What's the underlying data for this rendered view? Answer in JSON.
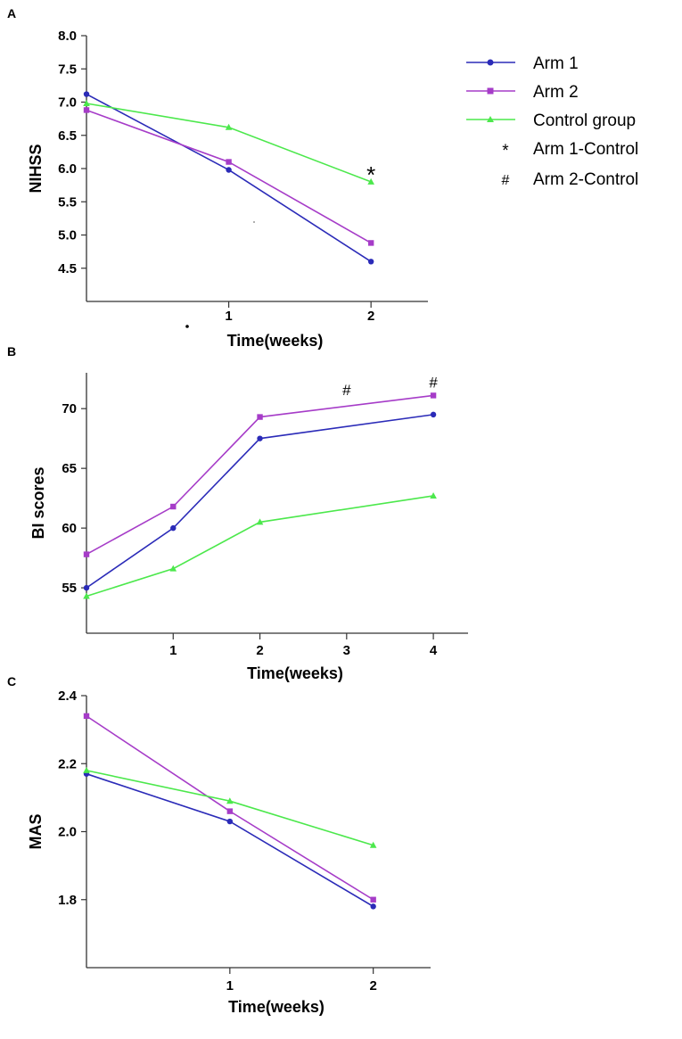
{
  "figure_labels": [
    "A",
    "B",
    "C"
  ],
  "legend": {
    "entries": [
      {
        "label": "Arm 1",
        "color": "#2b2bb8",
        "marker": "circle"
      },
      {
        "label": "Arm 2",
        "color": "#a63cc8",
        "marker": "square"
      },
      {
        "label": "Control group",
        "color": "#4ce84c",
        "marker": "triangle"
      }
    ],
    "symbols": [
      {
        "symbol": "*",
        "label": "Arm 1-Control"
      },
      {
        "symbol": "#",
        "label": "Arm 2-Control"
      }
    ]
  },
  "chart_data": [
    {
      "panel": "A",
      "type": "line",
      "title": "",
      "xlabel": "Time(weeks)",
      "ylabel": "NIHSS",
      "x": [
        0,
        1,
        2
      ],
      "xticks": [
        1,
        2
      ],
      "xlim": [
        0,
        2.4
      ],
      "yticks": [
        "4.5",
        "5.0",
        "5.5",
        "6.0",
        "6.5",
        "7.0",
        "7.5",
        "8.0"
      ],
      "ylim": [
        4.0,
        8.0
      ],
      "series": [
        {
          "name": "Arm 1",
          "color": "#2b2bb8",
          "marker": "circle",
          "values": [
            7.12,
            5.98,
            4.6
          ]
        },
        {
          "name": "Arm 2",
          "color": "#a63cc8",
          "marker": "square",
          "values": [
            6.88,
            6.1,
            4.88
          ]
        },
        {
          "name": "Control group",
          "color": "#4ce84c",
          "marker": "triangle",
          "values": [
            6.98,
            6.62,
            5.8
          ]
        }
      ],
      "annotations": [
        {
          "text": "*",
          "x": 2,
          "y": 5.97
        }
      ]
    },
    {
      "panel": "B",
      "type": "line",
      "title": "",
      "xlabel": "Time(weeks)",
      "ylabel": "BI scores",
      "x": [
        0,
        1,
        2,
        4
      ],
      "xticks": [
        1,
        2,
        3,
        4
      ],
      "xlim": [
        0,
        4.4
      ],
      "yticks": [
        "55",
        "60",
        "65",
        "70"
      ],
      "ylim": [
        51.2,
        73.0
      ],
      "series": [
        {
          "name": "Arm 1",
          "color": "#2b2bb8",
          "marker": "circle",
          "values": [
            55.0,
            60.0,
            67.5,
            69.5
          ]
        },
        {
          "name": "Arm 2",
          "color": "#a63cc8",
          "marker": "square",
          "values": [
            57.8,
            61.8,
            69.3,
            71.1
          ]
        },
        {
          "name": "Control group",
          "color": "#4ce84c",
          "marker": "triangle",
          "values": [
            54.3,
            56.6,
            60.5,
            62.7
          ]
        }
      ],
      "annotations": [
        {
          "text": "#",
          "x": 3,
          "y": 71.6
        },
        {
          "text": "#",
          "x": 4,
          "y": 72.2
        }
      ]
    },
    {
      "panel": "C",
      "type": "line",
      "title": "",
      "xlabel": "Time(weeks)",
      "ylabel": "MAS",
      "x": [
        0,
        1,
        2
      ],
      "xticks": [
        1,
        2
      ],
      "xlim": [
        0,
        2.4
      ],
      "yticks": [
        "1.8",
        "2.0",
        "2.2",
        "2.4"
      ],
      "ylim": [
        1.6,
        2.4
      ],
      "series": [
        {
          "name": "Arm 1",
          "color": "#2b2bb8",
          "marker": "circle",
          "values": [
            2.17,
            2.03,
            1.78
          ]
        },
        {
          "name": "Arm 2",
          "color": "#a63cc8",
          "marker": "square",
          "values": [
            2.34,
            2.06,
            1.8
          ]
        },
        {
          "name": "Control group",
          "color": "#4ce84c",
          "marker": "triangle",
          "values": [
            2.18,
            2.09,
            1.96
          ]
        }
      ],
      "annotations": []
    }
  ]
}
